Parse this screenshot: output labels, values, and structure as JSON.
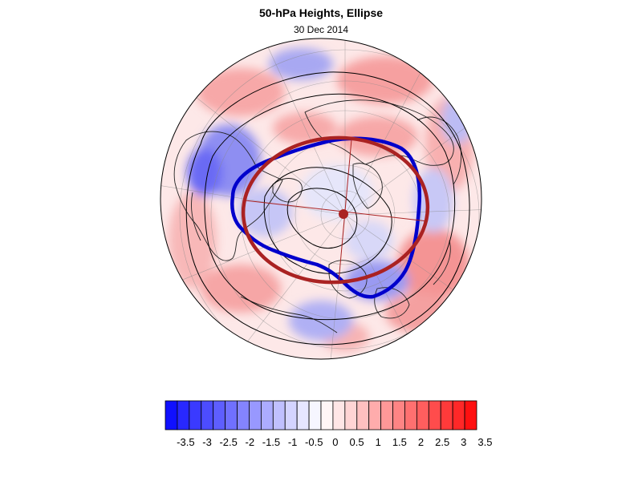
{
  "title": "50-hPa Heights, Ellipse",
  "date": "30 Dec 2014",
  "colorbar": {
    "colors": [
      "#1010ff",
      "#2828ff",
      "#3a3aff",
      "#4c4cff",
      "#5e5eff",
      "#7070ff",
      "#8484ff",
      "#9898ff",
      "#acacff",
      "#c0c0ff",
      "#d4d4ff",
      "#e6e6ff",
      "#f6f6ff",
      "#fff6f6",
      "#ffe6e6",
      "#ffd4d4",
      "#ffc0c0",
      "#ffacac",
      "#ff9898",
      "#ff8484",
      "#ff7070",
      "#ff5e5e",
      "#ff4c4c",
      "#ff3a3a",
      "#ff2828",
      "#ff1010"
    ],
    "tick_labels": [
      "-3.5",
      "-3",
      "-2.5",
      "-2",
      "-1.5",
      "-1",
      "-0.5",
      "0",
      "0.5",
      "1",
      "1.5",
      "2",
      "2.5",
      "3",
      "3.5"
    ]
  },
  "legend_colors": {
    "vortex_edge": "#0000cc",
    "fitted_ellipse": "#aa2222",
    "height_contours": "#000000"
  }
}
